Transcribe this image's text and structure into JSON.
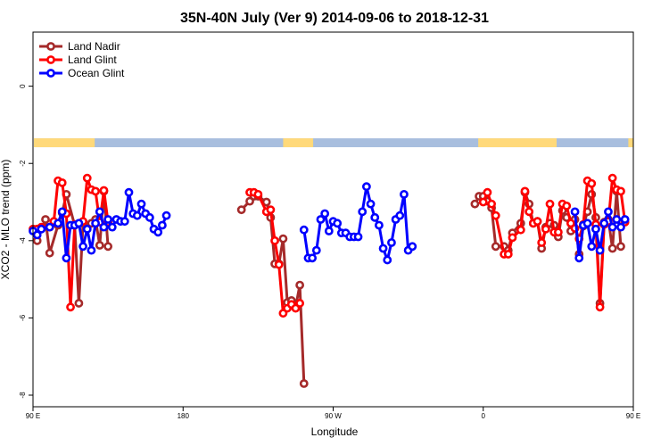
{
  "chart_data": {
    "type": "line",
    "title": "35N-40N July (Ver 9)   2014-09-06 to 2018-12-31",
    "xlabel": "Longitude",
    "ylabel": "XCO2 - MLO trend (ppm)",
    "xlim": [
      90,
      450
    ],
    "ylim": [
      -8.3,
      1.4
    ],
    "x_ticks": [
      {
        "value": 90,
        "label": "90 E"
      },
      {
        "value": 180,
        "label": "180"
      },
      {
        "value": 270,
        "label": "90 W"
      },
      {
        "value": 360,
        "label": "0"
      },
      {
        "value": 450,
        "label": "90 E"
      },
      {
        "value": 540,
        "label": "180"
      }
    ],
    "y_ticks": [
      {
        "value": 0,
        "label": "0"
      },
      {
        "value": -2,
        "label": "-2"
      },
      {
        "value": -4,
        "label": "-4"
      },
      {
        "value": -6,
        "label": "-6"
      },
      {
        "value": -8,
        "label": "-8"
      }
    ],
    "land_mask": {
      "y_top": -1.35,
      "y_bottom": -1.58,
      "ocean_color": "#a8bede",
      "land_color": "#ffd97a",
      "land_ranges": [
        [
          90,
          127
        ],
        [
          240,
          258
        ],
        [
          357,
          404
        ],
        [
          447,
          478
        ],
        [
          583,
          596
        ]
      ]
    },
    "legend_position": "top-left",
    "series": [
      {
        "name": "Land Nadir",
        "color": "#a52a2a",
        "points": [
          [
            92.5,
            -4.0
          ],
          [
            97.5,
            -3.45
          ],
          [
            100.0,
            -4.32
          ],
          [
            105.0,
            -3.6
          ],
          [
            107.5,
            -3.28
          ],
          [
            110.0,
            -2.8
          ],
          [
            115.0,
            -3.6
          ],
          [
            117.5,
            -5.62
          ],
          [
            120.0,
            -3.55
          ],
          [
            125.0,
            -3.55
          ],
          [
            127.5,
            -3.45
          ],
          [
            130.0,
            -4.12
          ],
          [
            132.5,
            -2.72
          ],
          [
            135.0,
            -4.15
          ],
          [
            142.5,
            null
          ],
          [
            210.0,
            null
          ],
          [
            215.0,
            -3.2
          ],
          [
            220.0,
            -2.98
          ],
          [
            222.5,
            -2.85
          ],
          [
            225.0,
            -2.85
          ],
          [
            230.0,
            -3.0
          ],
          [
            232.5,
            -3.4
          ],
          [
            235.0,
            -4.6
          ],
          [
            237.5,
            -4.6
          ],
          [
            240.0,
            -3.95
          ],
          [
            242.5,
            -5.6
          ],
          [
            245.0,
            -5.55
          ],
          [
            247.5,
            -5.72
          ],
          [
            250.0,
            -5.15
          ],
          [
            252.5,
            -7.7
          ],
          [
            260.0,
            null
          ],
          [
            350.0,
            null
          ],
          [
            355.0,
            -3.05
          ],
          [
            357.5,
            -2.85
          ],
          [
            360.0,
            -2.85
          ],
          [
            362.5,
            -2.98
          ],
          [
            365.0,
            -3.15
          ],
          [
            367.5,
            -4.15
          ],
          [
            372.5,
            -4.15
          ],
          [
            375.0,
            -4.25
          ],
          [
            377.5,
            -3.8
          ],
          [
            382.5,
            -3.55
          ],
          [
            385.0,
            -2.75
          ],
          [
            387.5,
            -3.05
          ],
          [
            390.0,
            -3.55
          ],
          [
            392.5,
            -3.5
          ],
          [
            395.0,
            -4.2
          ],
          [
            397.5,
            -3.65
          ],
          [
            400.0,
            -3.55
          ],
          [
            402.5,
            -3.6
          ],
          [
            405.0,
            -3.9
          ],
          [
            407.5,
            -3.22
          ],
          [
            410.0,
            -3.4
          ],
          [
            412.5,
            -3.75
          ],
          [
            415.0,
            -3.45
          ],
          [
            417.5,
            -4.35
          ],
          [
            420.0,
            -3.62
          ],
          [
            422.5,
            -3.25
          ],
          [
            425.0,
            -2.8
          ],
          [
            427.5,
            -3.4
          ],
          [
            430.0,
            -5.62
          ],
          [
            432.5,
            -3.52
          ],
          [
            435.0,
            -3.45
          ],
          [
            437.5,
            -4.2
          ],
          [
            440.0,
            -2.72
          ],
          [
            442.5,
            -4.15
          ]
        ]
      },
      {
        "name": "Land Glint",
        "color": "#ff0000",
        "points": [
          [
            90.0,
            -3.7
          ],
          [
            92.5,
            -3.7
          ],
          [
            95.0,
            -3.65
          ],
          [
            100.0,
            -3.65
          ],
          [
            102.5,
            -3.5
          ],
          [
            105.0,
            -2.45
          ],
          [
            107.5,
            -2.5
          ],
          [
            110.0,
            -3.3
          ],
          [
            112.5,
            -5.72
          ],
          [
            115.0,
            -3.58
          ],
          [
            120.0,
            -3.5
          ],
          [
            122.5,
            -2.38
          ],
          [
            125.0,
            -2.68
          ],
          [
            127.5,
            -2.72
          ],
          [
            130.0,
            -3.52
          ],
          [
            132.5,
            -2.7
          ],
          [
            135.0,
            -3.52
          ],
          [
            142.5,
            null
          ],
          [
            215.0,
            null
          ],
          [
            220.0,
            -2.75
          ],
          [
            222.5,
            -2.75
          ],
          [
            225.0,
            -2.8
          ],
          [
            230.0,
            -3.25
          ],
          [
            232.5,
            -3.2
          ],
          [
            235.0,
            -4.0
          ],
          [
            237.5,
            -4.62
          ],
          [
            240.0,
            -5.88
          ],
          [
            242.5,
            -5.75
          ],
          [
            245.0,
            -5.65
          ],
          [
            247.5,
            -5.75
          ],
          [
            250.0,
            -5.62
          ],
          [
            255.0,
            null
          ],
          [
            355.0,
            null
          ],
          [
            360.0,
            -3.0
          ],
          [
            362.5,
            -2.75
          ],
          [
            365.0,
            -3.05
          ],
          [
            367.5,
            -3.35
          ],
          [
            372.5,
            -4.35
          ],
          [
            375.0,
            -4.35
          ],
          [
            377.5,
            -3.92
          ],
          [
            382.5,
            -3.72
          ],
          [
            385.0,
            -2.72
          ],
          [
            387.5,
            -3.25
          ],
          [
            390.0,
            -3.55
          ],
          [
            392.5,
            -3.5
          ],
          [
            395.0,
            -4.05
          ],
          [
            397.5,
            -3.7
          ],
          [
            400.0,
            -3.05
          ],
          [
            402.5,
            -3.78
          ],
          [
            405.0,
            -3.78
          ],
          [
            407.5,
            -3.05
          ],
          [
            410.0,
            -3.1
          ],
          [
            412.5,
            -3.55
          ],
          [
            415.0,
            -3.68
          ],
          [
            417.5,
            -3.95
          ],
          [
            420.0,
            -3.58
          ],
          [
            422.5,
            -2.45
          ],
          [
            425.0,
            -2.52
          ],
          [
            427.5,
            -3.58
          ],
          [
            430.0,
            -5.72
          ],
          [
            432.5,
            -3.58
          ],
          [
            435.0,
            -3.5
          ],
          [
            437.5,
            -2.38
          ],
          [
            440.0,
            -2.68
          ],
          [
            442.5,
            -2.72
          ],
          [
            445.0,
            -3.52
          ]
        ]
      },
      {
        "name": "Ocean Glint",
        "color": "#0000ff",
        "points": [
          [
            90.0,
            -3.75
          ],
          [
            92.5,
            -3.85
          ],
          [
            95.0,
            -3.7
          ],
          [
            100.0,
            -3.65
          ],
          [
            105.0,
            -3.55
          ],
          [
            107.5,
            -3.25
          ],
          [
            110.0,
            -4.45
          ],
          [
            112.5,
            -3.6
          ],
          [
            115.0,
            -3.6
          ],
          [
            117.5,
            -3.55
          ],
          [
            120.0,
            -4.15
          ],
          [
            122.5,
            -3.7
          ],
          [
            125.0,
            -4.25
          ],
          [
            127.5,
            -3.55
          ],
          [
            130.0,
            -3.25
          ],
          [
            132.5,
            -3.65
          ],
          [
            135.0,
            -3.45
          ],
          [
            137.5,
            -3.65
          ],
          [
            140.0,
            -3.45
          ],
          [
            142.5,
            -3.5
          ],
          [
            145.0,
            -3.5
          ],
          [
            147.5,
            -2.75
          ],
          [
            150.0,
            -3.3
          ],
          [
            152.5,
            -3.35
          ],
          [
            155.0,
            -3.05
          ],
          [
            157.5,
            -3.3
          ],
          [
            160.0,
            -3.4
          ],
          [
            162.5,
            -3.7
          ],
          [
            165.0,
            -3.78
          ],
          [
            167.5,
            -3.6
          ],
          [
            170.0,
            -3.35
          ],
          [
            175.0,
            null
          ],
          [
            250.0,
            null
          ],
          [
            252.5,
            -3.72
          ],
          [
            255.0,
            -4.45
          ],
          [
            257.5,
            -4.45
          ],
          [
            260.0,
            -4.25
          ],
          [
            262.5,
            -3.45
          ],
          [
            265.0,
            -3.3
          ],
          [
            267.5,
            -3.75
          ],
          [
            270.0,
            -3.5
          ],
          [
            272.5,
            -3.55
          ],
          [
            275.0,
            -3.8
          ],
          [
            277.5,
            -3.8
          ],
          [
            280.0,
            -3.9
          ],
          [
            282.5,
            -3.9
          ],
          [
            285.0,
            -3.9
          ],
          [
            287.5,
            -3.25
          ],
          [
            290.0,
            -2.6
          ],
          [
            292.5,
            -3.05
          ],
          [
            295.0,
            -3.4
          ],
          [
            297.5,
            -3.6
          ],
          [
            300.0,
            -4.2
          ],
          [
            302.5,
            -4.5
          ],
          [
            305.0,
            -4.05
          ],
          [
            307.5,
            -3.45
          ],
          [
            310.0,
            -3.35
          ],
          [
            312.5,
            -2.8
          ],
          [
            315.0,
            -4.25
          ],
          [
            317.5,
            -4.15
          ],
          [
            320.0,
            null
          ],
          [
            414.0,
            null
          ],
          [
            415.0,
            -3.25
          ],
          [
            417.5,
            -4.45
          ],
          [
            420.0,
            -3.6
          ],
          [
            422.5,
            -3.55
          ],
          [
            425.0,
            -4.15
          ],
          [
            427.5,
            -3.7
          ],
          [
            430.0,
            -4.25
          ],
          [
            432.5,
            -3.55
          ],
          [
            435.0,
            -3.25
          ],
          [
            437.5,
            -3.65
          ],
          [
            440.0,
            -3.45
          ],
          [
            442.5,
            -3.65
          ],
          [
            445.0,
            -3.45
          ]
        ]
      }
    ]
  }
}
